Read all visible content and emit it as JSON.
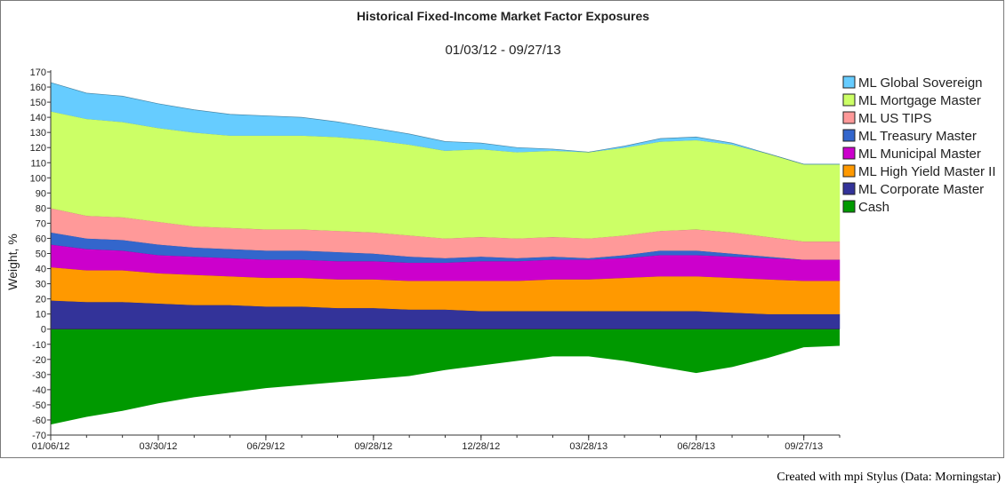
{
  "chart_data": {
    "type": "area",
    "title": "Historical Fixed-Income Market Factor Exposures",
    "subtitle": "01/03/12 - 09/27/13",
    "ylabel": "Weight, %",
    "xlabel": "",
    "ylim": [
      -70,
      170
    ],
    "ytick_step": 10,
    "x": [
      0,
      1,
      2,
      3,
      4,
      5,
      6,
      7,
      8,
      9,
      10,
      11,
      12,
      13,
      14,
      15,
      16,
      17,
      18,
      19,
      20,
      21,
      22
    ],
    "xticks": [
      {
        "x": 0,
        "label": "01/06/12"
      },
      {
        "x": 3,
        "label": "03/30/12"
      },
      {
        "x": 6,
        "label": "06/29/12"
      },
      {
        "x": 9,
        "label": "09/28/12"
      },
      {
        "x": 12,
        "label": "12/28/12"
      },
      {
        "x": 15,
        "label": "03/28/13"
      },
      {
        "x": 18,
        "label": "06/28/13"
      },
      {
        "x": 21,
        "label": "09/27/13"
      }
    ],
    "colors": {
      "ML Global Sovereign": "#66ccff",
      "ML Mortgage Master": "#ccff66",
      "ML US TIPS": "#ff9999",
      "ML Treasury Master": "#3366cc",
      "ML Municipal Master": "#cc00cc",
      "ML High Yield Master II": "#ff9900",
      "ML Corporate Master": "#333399",
      "Cash": "#009900"
    },
    "legend_position": "right",
    "stack_order": [
      "ML Corporate Master",
      "ML High Yield Master II",
      "ML Municipal Master",
      "ML Treasury Master",
      "ML US TIPS",
      "ML Mortgage Master",
      "ML Global Sovereign"
    ],
    "series": [
      {
        "name": "ML Global Sovereign",
        "values": [
          19,
          17,
          17,
          16,
          15,
          14,
          13,
          12,
          10,
          8,
          7,
          6,
          4,
          3,
          1,
          0,
          1,
          2,
          2,
          1,
          0,
          0,
          0
        ]
      },
      {
        "name": "ML Mortgage Master",
        "values": [
          64,
          64,
          63,
          62,
          62,
          61,
          62,
          62,
          62,
          61,
          60,
          58,
          58,
          57,
          57,
          57,
          58,
          59,
          59,
          58,
          55,
          51,
          51
        ]
      },
      {
        "name": "ML US TIPS",
        "values": [
          16,
          15,
          15,
          15,
          14,
          14,
          14,
          14,
          14,
          14,
          14,
          13,
          13,
          13,
          13,
          13,
          13,
          13,
          14,
          14,
          13,
          12,
          12
        ]
      },
      {
        "name": "ML Treasury Master",
        "values": [
          8,
          7,
          7,
          7,
          6,
          6,
          6,
          6,
          6,
          5,
          4,
          3,
          3,
          2,
          2,
          1,
          2,
          3,
          3,
          2,
          1,
          0,
          0
        ]
      },
      {
        "name": "ML Municipal Master",
        "values": [
          15,
          14,
          13,
          12,
          12,
          12,
          12,
          12,
          12,
          12,
          12,
          12,
          13,
          13,
          13,
          13,
          13,
          14,
          14,
          14,
          14,
          14,
          14
        ]
      },
      {
        "name": "ML High Yield Master II",
        "values": [
          22,
          21,
          21,
          20,
          20,
          19,
          19,
          19,
          19,
          19,
          19,
          19,
          20,
          20,
          21,
          21,
          22,
          23,
          23,
          23,
          23,
          22,
          22
        ]
      },
      {
        "name": "ML Corporate Master",
        "values": [
          19,
          18,
          18,
          17,
          16,
          16,
          15,
          15,
          14,
          14,
          13,
          13,
          12,
          12,
          12,
          12,
          12,
          12,
          12,
          11,
          10,
          10,
          10
        ]
      },
      {
        "name": "Cash",
        "values": [
          -63,
          -58,
          -54,
          -49,
          -45,
          -42,
          -39,
          -37,
          -35,
          -33,
          -31,
          -27,
          -24,
          -21,
          -18,
          -18,
          -21,
          -25,
          -29,
          -25,
          -19,
          -12,
          -11
        ]
      }
    ]
  },
  "credit": "Created with mpi Stylus (Data: Morningstar)"
}
